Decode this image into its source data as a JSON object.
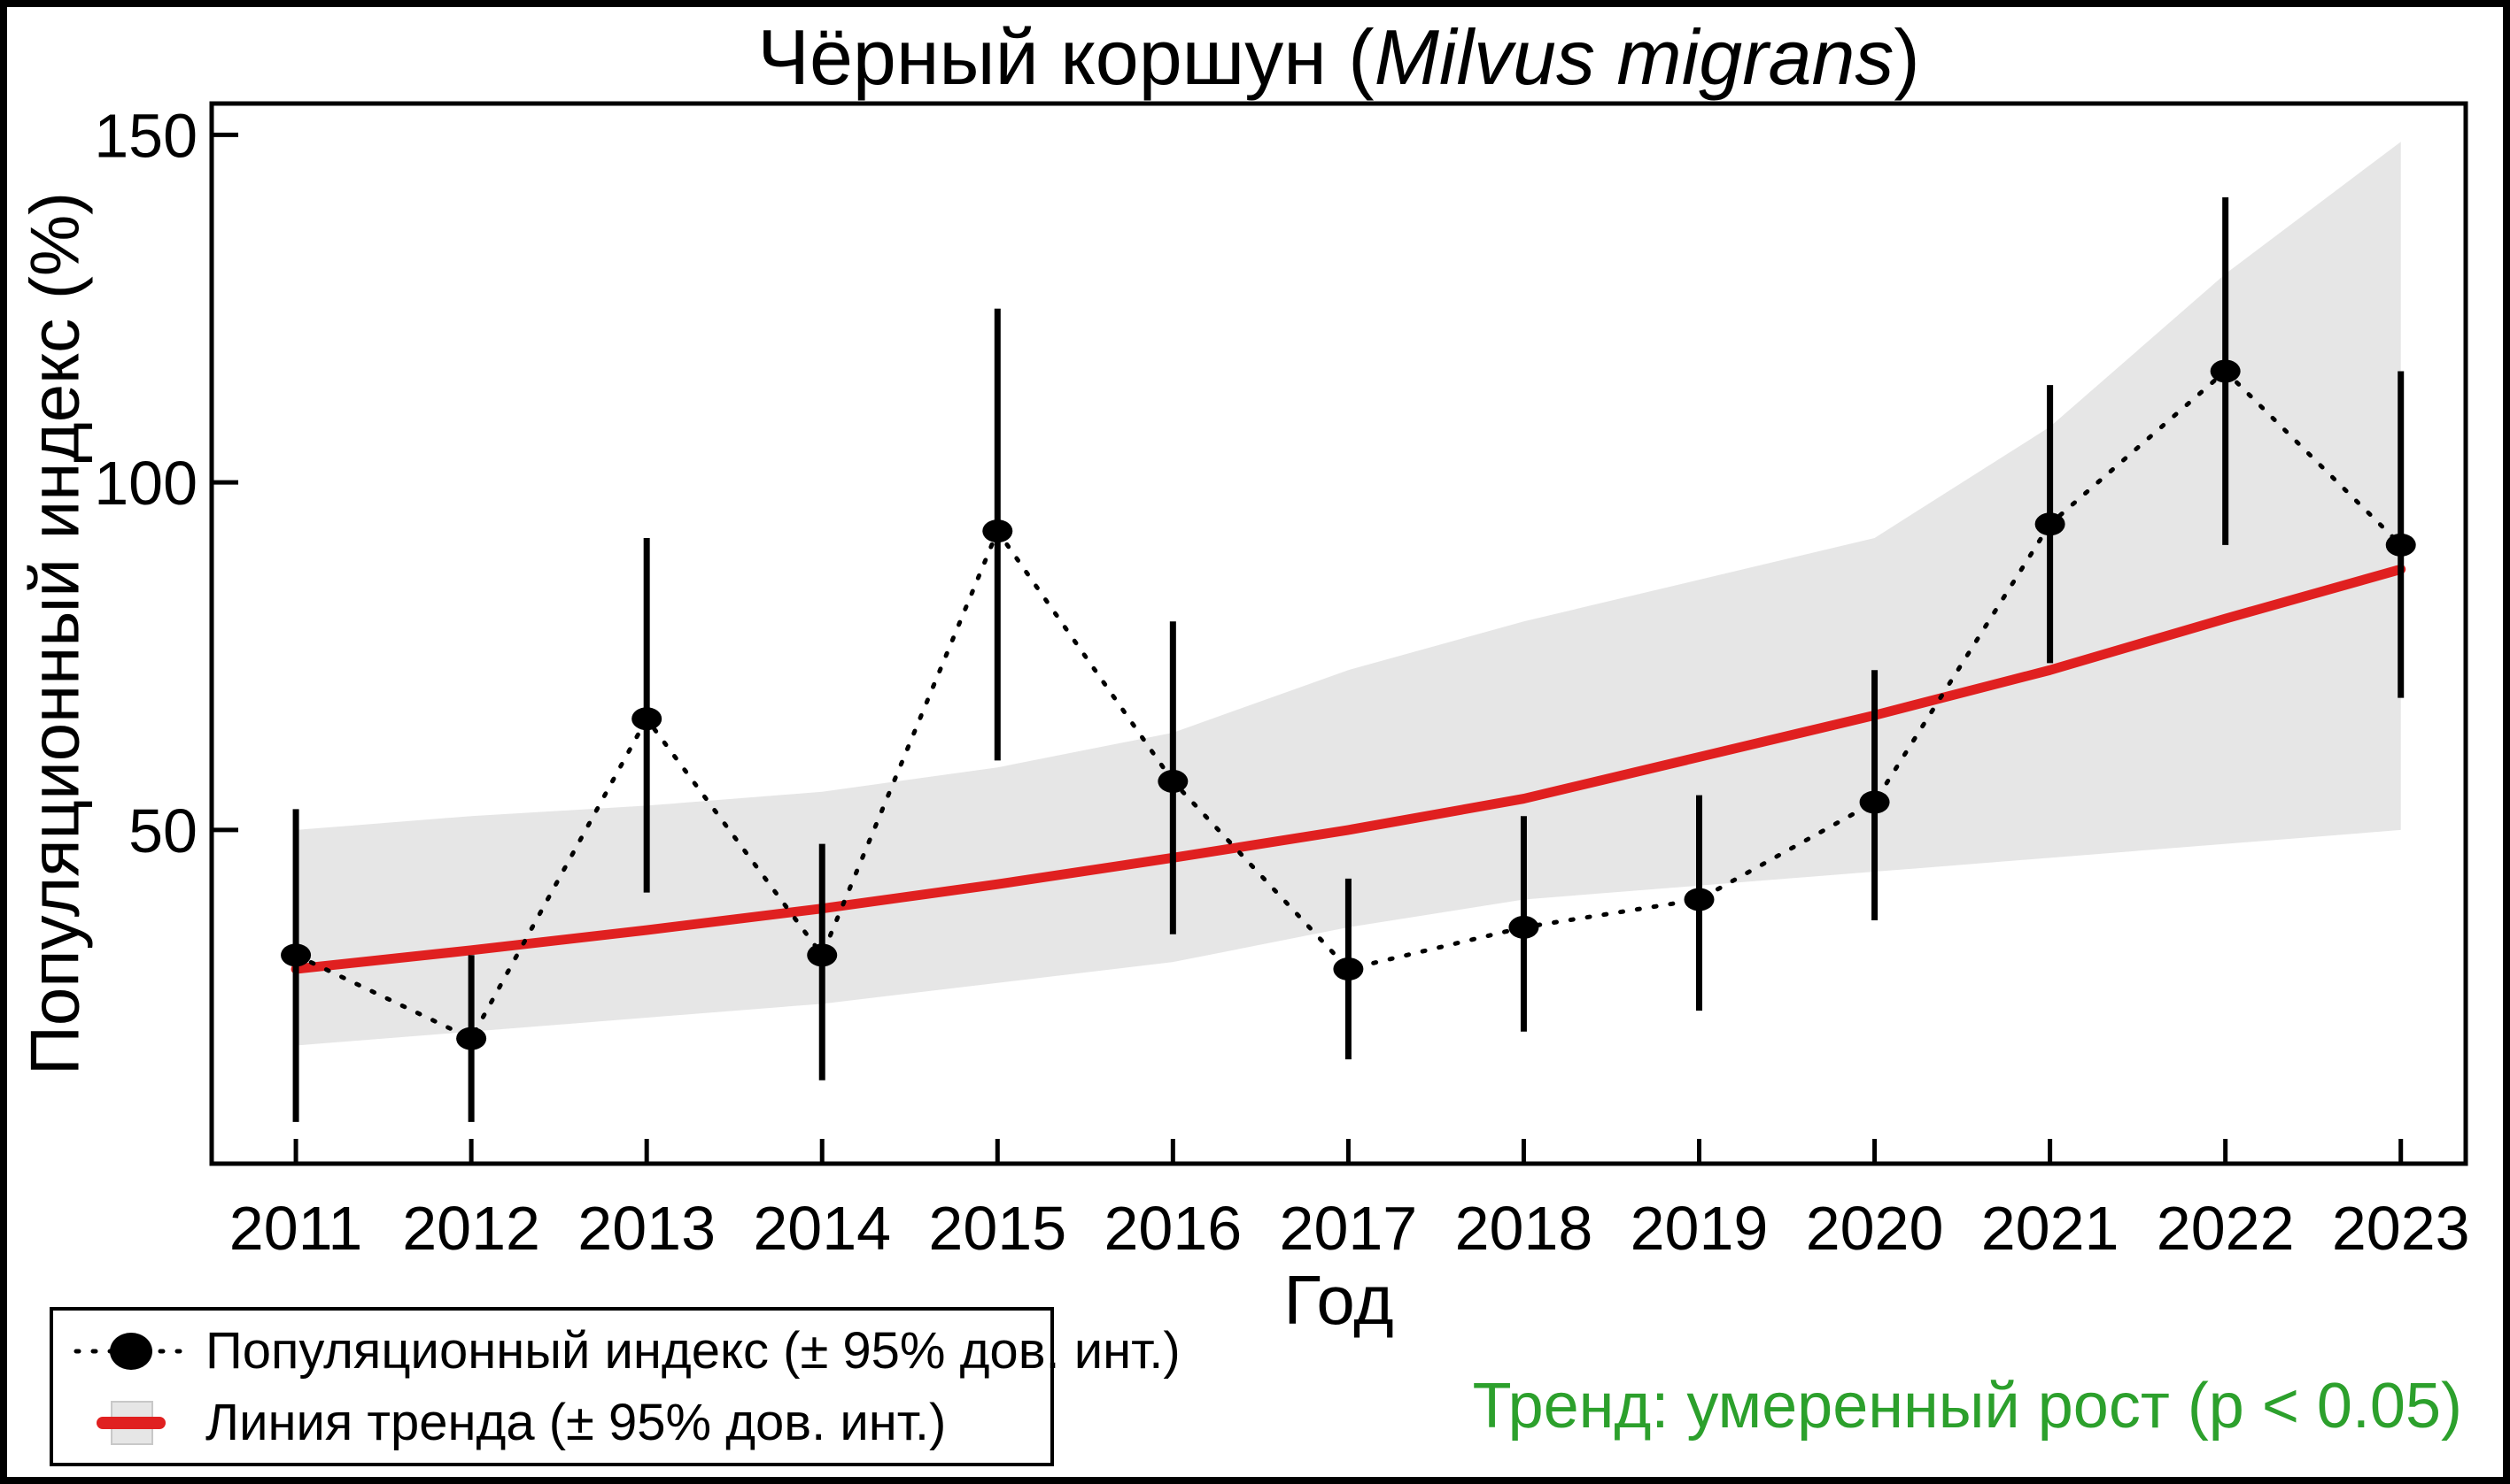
{
  "figure": {
    "title_prefix": "Чёрный коршун (",
    "title_italic": "Milvus migrans",
    "title_suffix": ")"
  },
  "axes": {
    "xlabel": "Год",
    "ylabel": "Популяционный индекс (%)"
  },
  "legend": {
    "items": [
      {
        "label": "Популяционный индекс (± 95% дов. инт.)"
      },
      {
        "label": "Линия тренда (± 95% дов. инт.)"
      }
    ]
  },
  "annotation": {
    "text": "Тренд: умеренный рост (p < 0.05)",
    "color": "#2ca02c"
  },
  "colors": {
    "points": "#000000",
    "error_bars": "#000000",
    "dotted_line": "#000000",
    "trend_line": "#e02020",
    "confidence_band": "#e6e6e6",
    "axes": "#000000",
    "text": "#000000"
  },
  "chart_data": {
    "type": "line",
    "title": "Чёрный коршун (Milvus migrans)",
    "xlabel": "Год",
    "ylabel": "Популяционный индекс (%)",
    "x": [
      2011,
      2012,
      2013,
      2014,
      2015,
      2016,
      2017,
      2018,
      2019,
      2020,
      2021,
      2022,
      2023
    ],
    "xlim": [
      2010.52,
      2023.37
    ],
    "ylim": [
      2,
      154.5
    ],
    "yticks": [
      50,
      100,
      150
    ],
    "grid": false,
    "legend_position": "lower-left-outside",
    "series": [
      {
        "name": "Популяционный индекс (± 95% дов. инт.)",
        "style": "black points with dotted connector and 95% CI error bars",
        "values": [
          32,
          20,
          66,
          32,
          93,
          57,
          30,
          36,
          40,
          54,
          94,
          116,
          91
        ],
        "ci_low": [
          8,
          8,
          41,
          14,
          60,
          35,
          17,
          21,
          24,
          37,
          74,
          91,
          69
        ],
        "ci_high": [
          53,
          32,
          92,
          48,
          125,
          80,
          43,
          52,
          55,
          73,
          114,
          141,
          116
        ]
      },
      {
        "name": "Линия тренда (± 95% дов. инт.)",
        "style": "red trend line with gray 95% confidence band",
        "values": [
          30,
          32.7,
          35.6,
          38.7,
          42.2,
          46,
          50,
          54.5,
          60.5,
          66.5,
          73,
          80.4,
          87.5
        ],
        "band_low": [
          19,
          21,
          23,
          25,
          28,
          31,
          36,
          40,
          42,
          44,
          46,
          48,
          50
        ],
        "band_high": [
          50,
          52,
          53.5,
          55.5,
          59,
          64,
          73,
          80,
          86,
          92,
          108,
          130,
          149
        ]
      }
    ]
  }
}
